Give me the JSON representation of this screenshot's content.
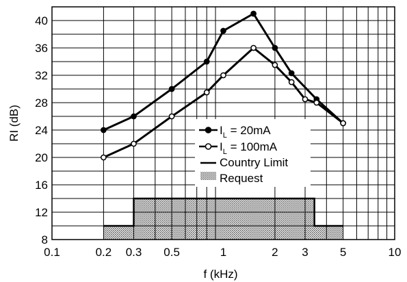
{
  "chart_data": {
    "type": "line",
    "xlabel": "f (kHz)",
    "ylabel": "RI (dB)",
    "x_scale": "log",
    "xlim": [
      0.1,
      10
    ],
    "ylim": [
      8,
      42
    ],
    "grid": true,
    "x_ticks": [
      "0.1",
      "0.2",
      "0.3",
      "0.5",
      "1",
      "2",
      "3",
      "5",
      "10"
    ],
    "y_ticks": [
      "8",
      "12",
      "16",
      "20",
      "24",
      "28",
      "32",
      "36",
      "40"
    ],
    "series": [
      {
        "name_main": "I",
        "name_sub": "L",
        "name_rest": " = 20mA",
        "marker": "filled-circle",
        "x": [
          0.2,
          0.3,
          0.5,
          0.8,
          1.0,
          1.5,
          2.0,
          2.5,
          3.5,
          5.0
        ],
        "y": [
          24,
          26,
          30,
          34,
          38.5,
          41,
          36,
          32.3,
          28.5,
          25
        ]
      },
      {
        "name_main": "I",
        "name_sub": "L",
        "name_rest": " = 100mA",
        "marker": "open-circle",
        "x": [
          0.2,
          0.3,
          0.5,
          0.8,
          1.0,
          1.5,
          2.0,
          2.5,
          3.0,
          3.5,
          5.0
        ],
        "y": [
          20,
          22,
          26,
          29.5,
          32,
          36,
          33.5,
          31,
          28.5,
          28,
          25
        ]
      }
    ],
    "country_limit": {
      "label": "Country Limit",
      "x": [
        0.2,
        0.3,
        0.3,
        3.4,
        3.4,
        5.0
      ],
      "y": [
        10,
        10,
        14,
        14,
        10,
        10
      ]
    },
    "request": {
      "label": "Request",
      "x_from": 0.2,
      "x_to": 5.0,
      "y_base": 8
    },
    "legend_position": "lower-center"
  }
}
